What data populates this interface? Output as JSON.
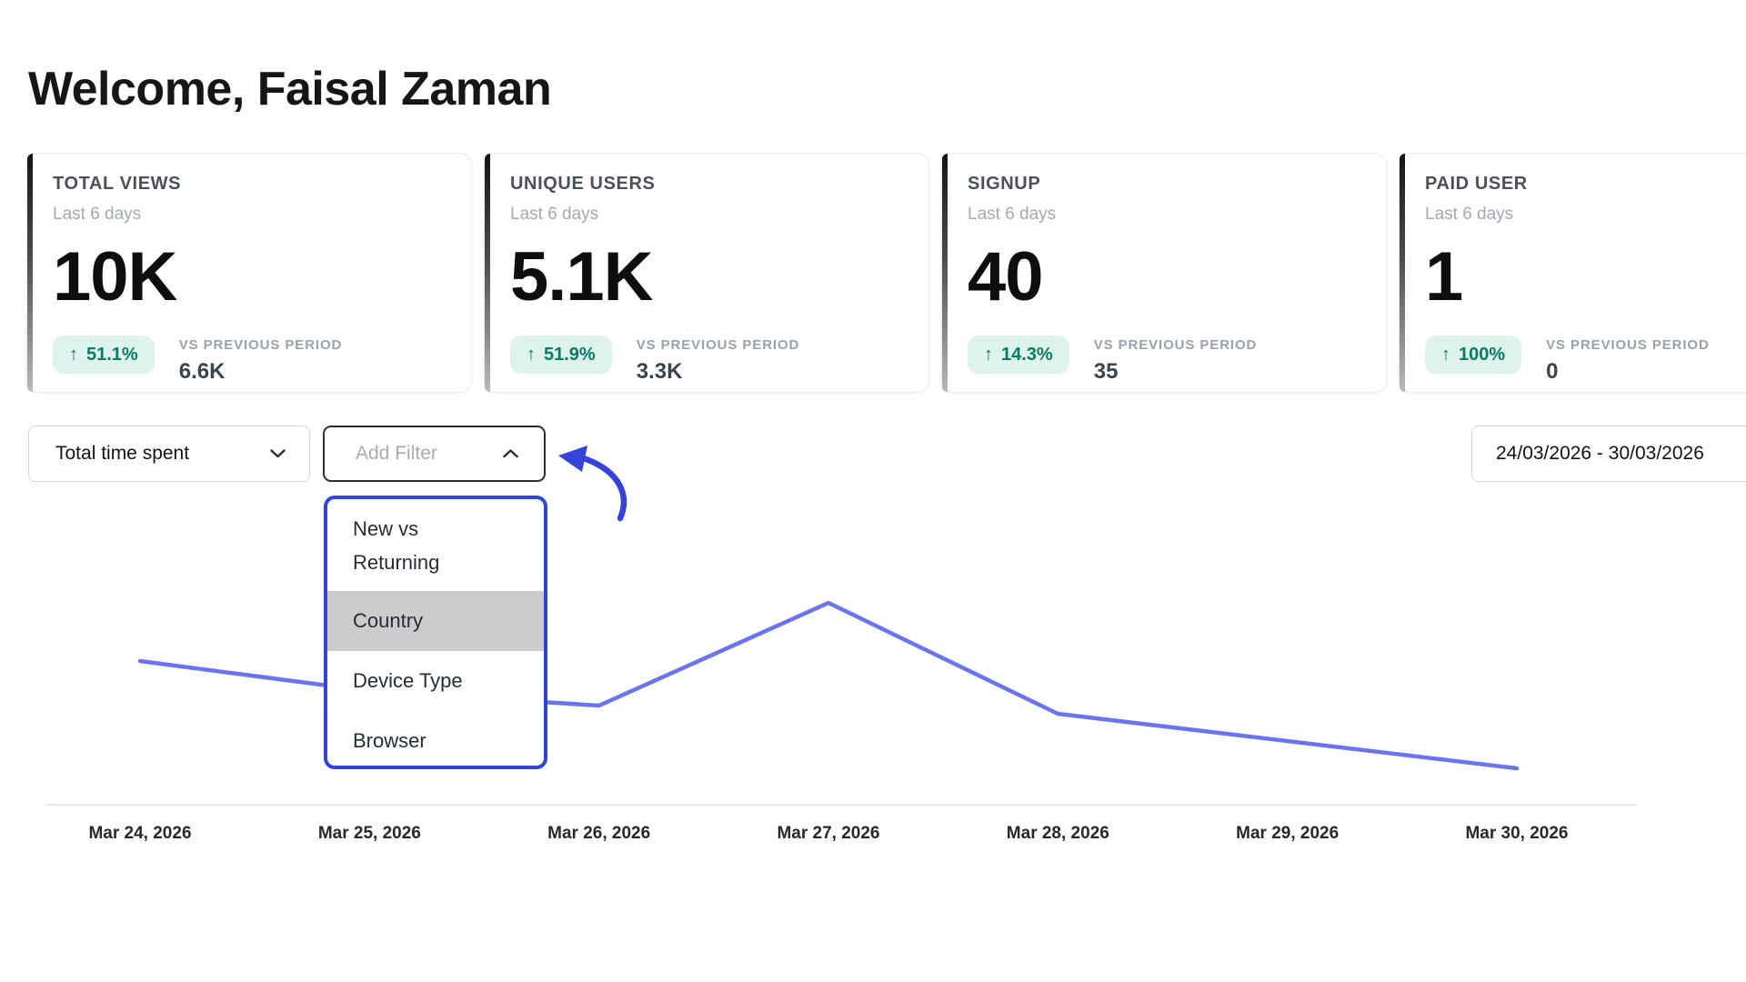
{
  "header": {
    "title": "Welcome, Faisal Zaman"
  },
  "stat_cards": [
    {
      "title": "TOTAL VIEWS",
      "subtitle": "Last 6 days",
      "value": "10K",
      "change_icon": "↑",
      "change": "51.1%",
      "vs_label": "VS PREVIOUS PERIOD",
      "vs_value": "6.6K"
    },
    {
      "title": "UNIQUE USERS",
      "subtitle": "Last 6 days",
      "value": "5.1K",
      "change_icon": "↑",
      "change": "51.9%",
      "vs_label": "VS PREVIOUS PERIOD",
      "vs_value": "3.3K"
    },
    {
      "title": "SIGNUP",
      "subtitle": "Last 6 days",
      "value": "40",
      "change_icon": "↑",
      "change": "14.3%",
      "vs_label": "VS PREVIOUS PERIOD",
      "vs_value": "35"
    },
    {
      "title": "PAID USER",
      "subtitle": "Last 6 days",
      "value": "1",
      "change_icon": "↑",
      "change": "100%",
      "vs_label": "VS PREVIOUS PERIOD",
      "vs_value": "0"
    }
  ],
  "filter_bar": {
    "metric_select": {
      "value": "Total time spent"
    },
    "add_filter_button": {
      "label": "Add Filter"
    },
    "date_range_input": {
      "value": "24/03/2026 - 30/03/2026"
    }
  },
  "filter_dropdown": {
    "items": [
      {
        "label": "New vs Returning",
        "highlighted": false
      },
      {
        "label": "Country",
        "highlighted": true
      },
      {
        "label": "Device Type",
        "highlighted": false
      },
      {
        "label": "Browser",
        "highlighted": false
      }
    ]
  },
  "chart_data": {
    "type": "line",
    "title": "",
    "xlabel": "",
    "ylabel": "",
    "x_labels": [
      "Mar 24, 2026",
      "Mar 25, 2026",
      "Mar 26, 2026",
      "Mar 27, 2026",
      "Mar 28, 2026",
      "Mar 29, 2026",
      "Mar 30, 2026"
    ],
    "series": [
      {
        "name": "Total time spent",
        "values": [
          158,
          125,
          109,
          222,
          100,
          70,
          40
        ]
      }
    ],
    "y_axis_visible": false,
    "grid": false,
    "legend": false,
    "note": "y-axis is hidden in the UI; values are relative estimates read from line positions",
    "line_color": "#6b74f0"
  },
  "colors": {
    "accent_blue": "#3443d9",
    "line": "#6b74f0",
    "badge_bg": "#ddf3ec",
    "badge_text": "#0b7a68",
    "highlight_gray": "#cccccc"
  }
}
